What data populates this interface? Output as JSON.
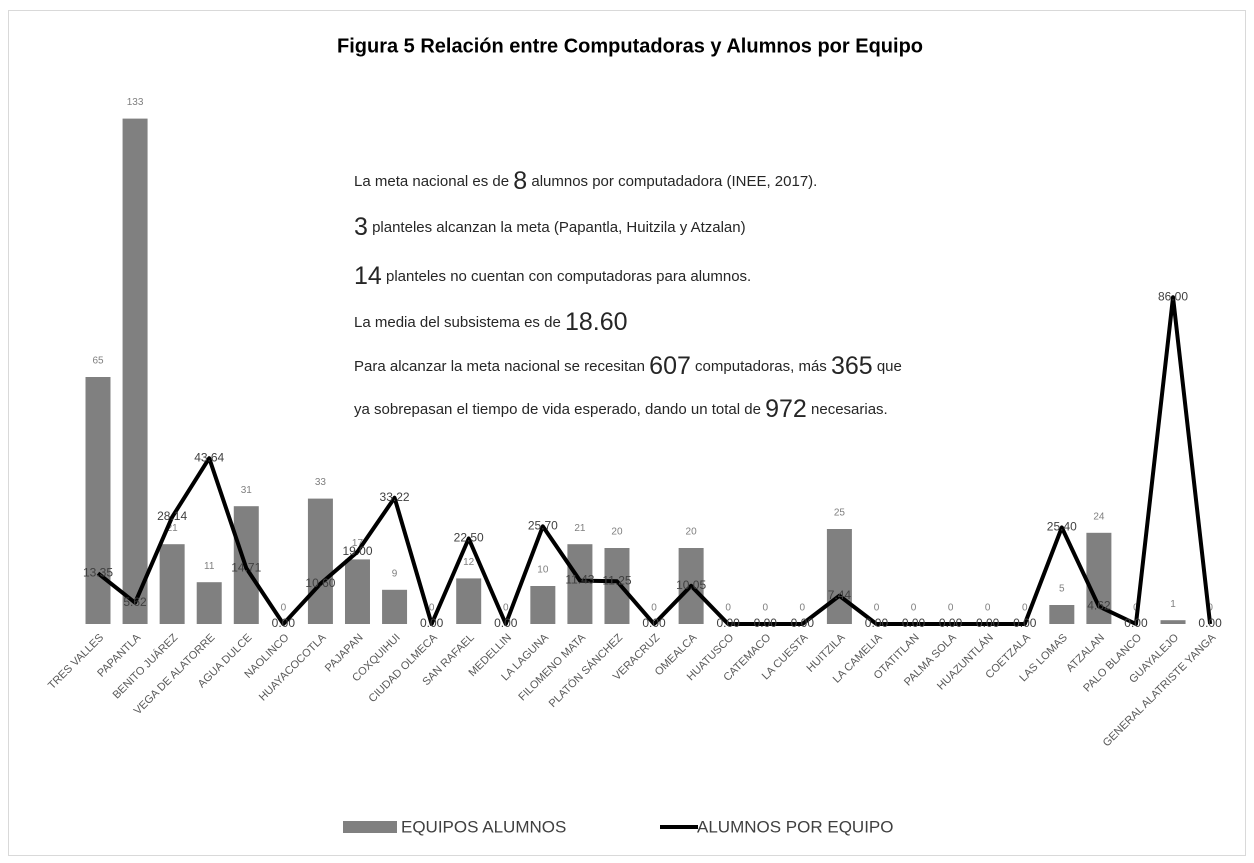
{
  "chart_data": {
    "type": "bar",
    "title": "Figura 5 Relación entre Computadoras y Alumnos por Equipo",
    "categories": [
      "TRES VALLES",
      "PAPANTLA",
      "BENITO JUÁREZ",
      "VEGA DE ALATORRE",
      "AGUA DULCE",
      "NAOLINCO",
      "HUAYACOCOTLA",
      "PAJAPAN",
      "COXQUIHUI",
      "CIUDAD OLMECA",
      "SAN RAFAEL",
      "MEDELLIN",
      "LA LAGUNA",
      "FILOMENO MATA",
      "PLATÓN SÁNCHEZ",
      "VERACRUZ",
      "OMEALCA",
      "HUATUSCO",
      "CATEMACO",
      "LA CUESTA",
      "HUITZILA",
      "LA CAMELIA",
      "OTATITLAN",
      "PALMA SOLA",
      "HUAZUNTLÁN",
      "COETZALA",
      "LAS LOMAS",
      "ATZALAN",
      "PALO BLANCO",
      "GUAYALEJO",
      "GENERAL ALATRISTE YANGA"
    ],
    "series": [
      {
        "name": "EQUIPOS ALUMNOS",
        "type": "bar",
        "color": "#808080",
        "values": [
          65,
          133,
          21,
          11,
          31,
          0,
          33,
          17,
          9,
          0,
          12,
          0,
          10,
          21,
          20,
          0,
          20,
          0,
          0,
          0,
          25,
          0,
          0,
          0,
          0,
          0,
          5,
          24,
          0,
          1,
          0
        ]
      },
      {
        "name": "ALUMNOS POR EQUIPO",
        "type": "line",
        "color": "#000000",
        "values": [
          13.35,
          5.62,
          28.14,
          43.64,
          14.71,
          0,
          10.6,
          19,
          33.22,
          0,
          22.5,
          0,
          25.7,
          11.43,
          11.25,
          0,
          10.05,
          0,
          0,
          0,
          7.44,
          0,
          0,
          0,
          0,
          0,
          25.4,
          4.62,
          0,
          86,
          0
        ],
        "value_labels": [
          "13.35",
          "5.62",
          "28.14",
          "43.64",
          "14.71",
          "0.00",
          "10.60",
          "19.00",
          "33.22",
          "0.00",
          "22.50",
          "0.00",
          "25.70",
          "11.43",
          "11.25",
          "0.00",
          "10.05",
          "0.00",
          "0.00",
          "0.00",
          "7.44",
          "0.00",
          "0.00",
          "0.00",
          "0.00",
          "0.00",
          "25.40",
          "4.62",
          "0.00",
          "86.00",
          "0.00"
        ]
      }
    ],
    "ylim": [
      0,
      140
    ],
    "annotations": [
      [
        "La meta nacional  es de ",
        "8",
        " alumnos por computadadora (INEE, 2017)."
      ],
      [
        "",
        "3",
        " planteles alcanzan la meta (Papantla, Huitzila y Atzalan)"
      ],
      [
        "",
        "14",
        " planteles no cuentan con computadoras para alumnos."
      ],
      [
        "La media del subsistema es de ",
        "18.60",
        ""
      ],
      [
        "Para alcanzar la meta nacional se recesitan ",
        "607",
        " computadoras, más ",
        "365",
        " que"
      ],
      [
        "ya sobrepasan el tiempo de vida esperado, dando un total de ",
        "972",
        " necesarias."
      ]
    ]
  }
}
